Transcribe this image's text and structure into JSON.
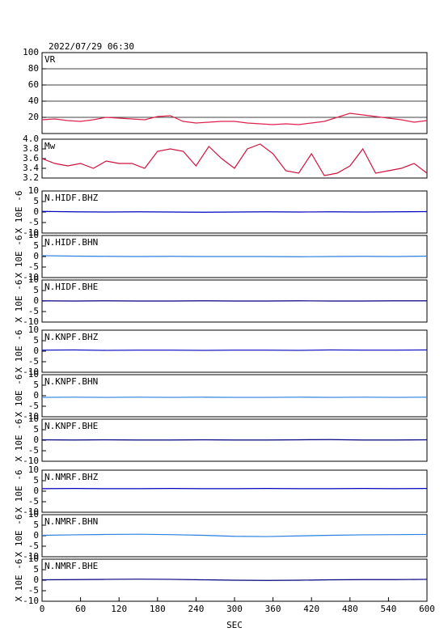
{
  "header": {
    "title": "2022/07/29 06:30"
  },
  "chart_data": [
    {
      "type": "line",
      "title": "VR",
      "color": "#e0204a",
      "x": [
        0,
        20,
        40,
        60,
        80,
        100,
        120,
        140,
        160,
        180,
        200,
        220,
        240,
        260,
        280,
        300,
        320,
        340,
        360,
        380,
        400,
        420,
        440,
        460,
        480,
        500,
        520,
        540,
        560,
        580,
        600
      ],
      "values": [
        17,
        18,
        16,
        15,
        17,
        20,
        19,
        18,
        17,
        21,
        22,
        15,
        13,
        14,
        15,
        15,
        13,
        12,
        11,
        12,
        11,
        13,
        15,
        20,
        25,
        23,
        21,
        19,
        17,
        14,
        16
      ],
      "xlim": [
        0,
        600
      ],
      "ylim": [
        0,
        100
      ],
      "yticks": [
        20,
        40,
        60,
        80,
        100
      ],
      "grid": true
    },
    {
      "type": "line",
      "title": "Mw",
      "color": "#d0103c",
      "x": [
        0,
        20,
        40,
        60,
        80,
        100,
        120,
        140,
        160,
        180,
        200,
        220,
        240,
        260,
        280,
        300,
        320,
        340,
        360,
        380,
        400,
        420,
        440,
        460,
        480,
        500,
        520,
        540,
        560,
        580,
        600
      ],
      "values": [
        3.6,
        3.5,
        3.45,
        3.5,
        3.4,
        3.55,
        3.5,
        3.5,
        3.4,
        3.75,
        3.8,
        3.75,
        3.45,
        3.85,
        3.6,
        3.4,
        3.8,
        3.9,
        3.7,
        3.35,
        3.3,
        3.7,
        3.25,
        3.3,
        3.45,
        3.8,
        3.3,
        3.35,
        3.4,
        3.5,
        3.3
      ],
      "xlim": [
        0,
        600
      ],
      "ylim": [
        3.2,
        4.0
      ],
      "yticks": [
        3.2,
        3.4,
        3.6,
        3.8,
        {
          "value": 4.0,
          "label": "4.0"
        }
      ],
      "grid": false
    },
    {
      "type": "line",
      "title": "N.HIDF.BHZ",
      "ylabel": "X 10E -6",
      "color": "#0000c0",
      "x": [
        0,
        50,
        100,
        150,
        200,
        250,
        300,
        350,
        400,
        450,
        500,
        550,
        600
      ],
      "values": [
        0.3,
        0.1,
        0,
        0.1,
        0,
        -0.1,
        0,
        0.1,
        0,
        0.1,
        0,
        0.1,
        0.2
      ],
      "xlim": [
        0,
        600
      ],
      "ylim": [
        -10,
        10
      ],
      "yticks": [
        -10,
        -5,
        0,
        5,
        10
      ],
      "grid": false
    },
    {
      "type": "line",
      "title": "N.HIDF.BHN",
      "ylabel": "X 10E -6",
      "color": "#2a7fe0",
      "x": [
        0,
        50,
        100,
        150,
        200,
        250,
        300,
        350,
        400,
        450,
        500,
        550,
        600
      ],
      "values": [
        0.4,
        0.2,
        0.1,
        0,
        0.1,
        0,
        0,
        0,
        -0.1,
        0,
        0.1,
        0,
        0.2
      ],
      "xlim": [
        0,
        600
      ],
      "ylim": [
        -10,
        10
      ],
      "yticks": [
        -10,
        -5,
        0,
        5,
        10
      ],
      "grid": false
    },
    {
      "type": "line",
      "title": "N.HIDF.BHE",
      "ylabel": "X 10E -6",
      "color": "#000080",
      "x": [
        0,
        50,
        100,
        150,
        200,
        250,
        300,
        350,
        400,
        450,
        500,
        550,
        600
      ],
      "values": [
        0.1,
        0,
        0.1,
        0,
        0,
        0.1,
        0,
        0,
        0.1,
        0,
        0,
        0.1,
        0.1
      ],
      "xlim": [
        0,
        600
      ],
      "ylim": [
        -10,
        10
      ],
      "yticks": [
        -10,
        -5,
        0,
        5,
        10
      ],
      "grid": false
    },
    {
      "type": "line",
      "title": "N.KNPF.BHZ",
      "ylabel": "X 10E -6",
      "color": "#0000c0",
      "x": [
        0,
        50,
        100,
        150,
        200,
        250,
        300,
        350,
        400,
        450,
        500,
        550,
        600
      ],
      "values": [
        0.5,
        0.6,
        0.4,
        0.5,
        0.5,
        0.4,
        0.5,
        0.5,
        0.4,
        0.6,
        0.5,
        0.5,
        0.6
      ],
      "xlim": [
        0,
        600
      ],
      "ylim": [
        -10,
        10
      ],
      "yticks": [
        -10,
        -5,
        0,
        5,
        10
      ],
      "grid": false
    },
    {
      "type": "line",
      "title": "N.KNPF.BHN",
      "ylabel": "X 10E -6",
      "color": "#2a7fe0",
      "x": [
        0,
        50,
        100,
        150,
        200,
        250,
        300,
        350,
        400,
        450,
        500,
        550,
        600
      ],
      "values": [
        -0.8,
        -0.7,
        -0.8,
        -0.7,
        -0.8,
        -0.7,
        -0.8,
        -0.8,
        -0.7,
        -0.8,
        -0.7,
        -0.8,
        -0.7
      ],
      "xlim": [
        0,
        600
      ],
      "ylim": [
        -10,
        10
      ],
      "yticks": [
        -10,
        -5,
        0,
        5,
        10
      ],
      "grid": false
    },
    {
      "type": "line",
      "title": "N.KNPF.BHE",
      "ylabel": "X 10E -6",
      "color": "#000080",
      "x": [
        0,
        50,
        100,
        150,
        200,
        250,
        300,
        350,
        400,
        450,
        500,
        550,
        600
      ],
      "values": [
        0.2,
        0.1,
        0.2,
        0.1,
        0.1,
        0.2,
        0.1,
        0.1,
        0.2,
        0.3,
        0.1,
        0.1,
        0.2
      ],
      "xlim": [
        0,
        600
      ],
      "ylim": [
        -10,
        10
      ],
      "yticks": [
        -10,
        -5,
        0,
        5,
        10
      ],
      "grid": false
    },
    {
      "type": "line",
      "title": "N.NMRF.BHZ",
      "ylabel": "X 10E -6",
      "color": "#0000c0",
      "x": [
        0,
        50,
        100,
        150,
        200,
        250,
        300,
        350,
        400,
        450,
        500,
        550,
        600
      ],
      "values": [
        1.2,
        1.3,
        1.2,
        1.2,
        1.3,
        1.2,
        1.2,
        1.3,
        1.2,
        1.2,
        1.3,
        1.2,
        1.3
      ],
      "xlim": [
        0,
        600
      ],
      "ylim": [
        -10,
        10
      ],
      "yticks": [
        -10,
        -5,
        0,
        5,
        10
      ],
      "grid": false
    },
    {
      "type": "line",
      "title": "N.NMRF.BHN",
      "ylabel": "X 10E -6",
      "color": "#2a7fe0",
      "x": [
        0,
        50,
        100,
        150,
        200,
        250,
        300,
        350,
        400,
        450,
        500,
        550,
        600
      ],
      "values": [
        0.2,
        0.4,
        0.6,
        0.7,
        0.5,
        0.2,
        -0.3,
        -0.4,
        -0.1,
        0.2,
        0.4,
        0.5,
        0.6
      ],
      "xlim": [
        0,
        600
      ],
      "ylim": [
        -10,
        10
      ],
      "yticks": [
        -10,
        -5,
        0,
        5,
        10
      ],
      "grid": false
    },
    {
      "type": "line",
      "title": "N.NMRF.BHE",
      "ylabel": "X 10E -6",
      "color": "#000080",
      "x": [
        0,
        50,
        100,
        150,
        200,
        250,
        300,
        350,
        400,
        450,
        500,
        550,
        600
      ],
      "values": [
        0.2,
        0.3,
        0.4,
        0.5,
        0.4,
        0.2,
        0,
        -0.1,
        0,
        0.2,
        0.3,
        0.3,
        0.4
      ],
      "xlim": [
        0,
        600
      ],
      "ylim": [
        -10,
        10
      ],
      "yticks": [
        -10,
        -5,
        0,
        5,
        10
      ],
      "grid": false,
      "xticks": [
        0,
        60,
        120,
        180,
        240,
        300,
        360,
        420,
        480,
        540,
        600
      ],
      "xlabel": "SEC"
    }
  ]
}
